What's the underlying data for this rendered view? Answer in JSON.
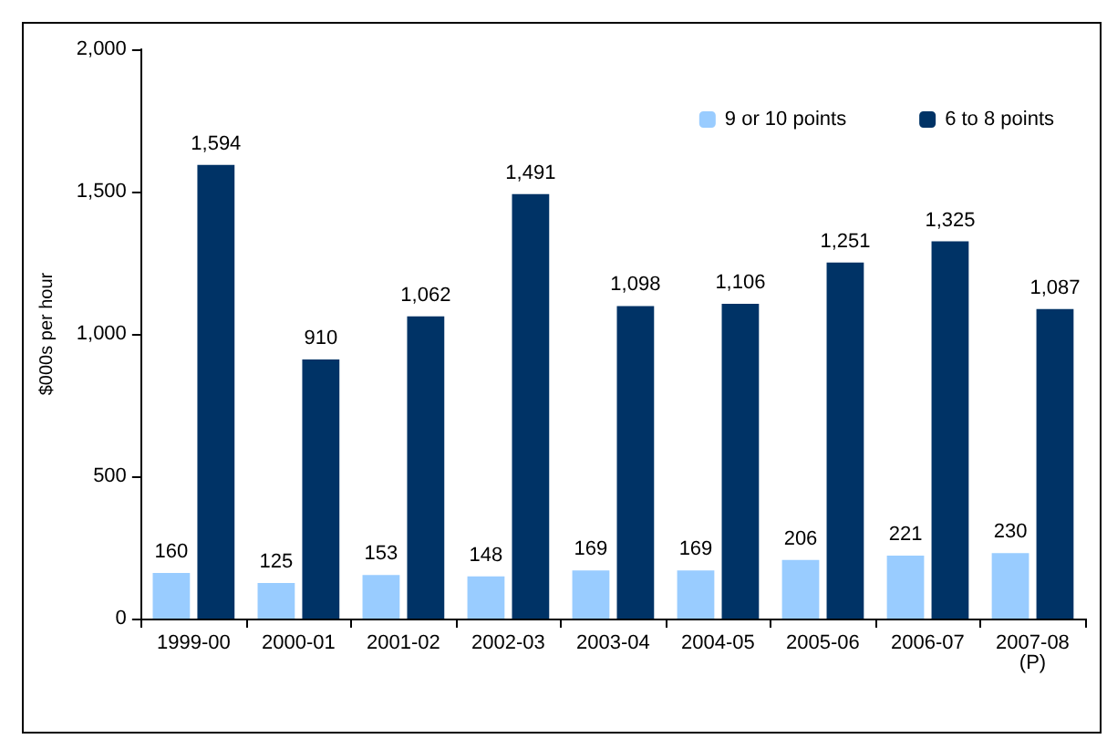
{
  "chart_data": {
    "type": "bar",
    "ylabel": "$000s per hour",
    "categories": [
      "1999-00",
      "2000-01",
      "2001-02",
      "2002-03",
      "2003-04",
      "2004-05",
      "2005-06",
      "2006-07",
      "2007-08\n(P)"
    ],
    "series": [
      {
        "name": "9 or 10 points",
        "color": "#99ccff",
        "values": [
          160,
          125,
          153,
          148,
          169,
          169,
          206,
          221,
          230
        ],
        "value_labels": [
          "160",
          "125",
          "153",
          "148",
          "169",
          "169",
          "206",
          "221",
          "230"
        ]
      },
      {
        "name": "6 to 8 points",
        "color": "#003366",
        "values": [
          1594,
          910,
          1062,
          1491,
          1098,
          1106,
          1251,
          1325,
          1087
        ],
        "value_labels": [
          "1,594",
          "910",
          "1,062",
          "1,491",
          "1,098",
          "1,106",
          "1,251",
          "1,325",
          "1,087"
        ]
      }
    ],
    "ylim": [
      0,
      2000
    ],
    "yticks": [
      0,
      500,
      {
        "value": 1000,
        "label": "1,000"
      },
      {
        "value": 1500,
        "label": "1,500"
      },
      {
        "value": 2000,
        "label": "2,000"
      }
    ],
    "grid": false,
    "legend": "top right"
  }
}
